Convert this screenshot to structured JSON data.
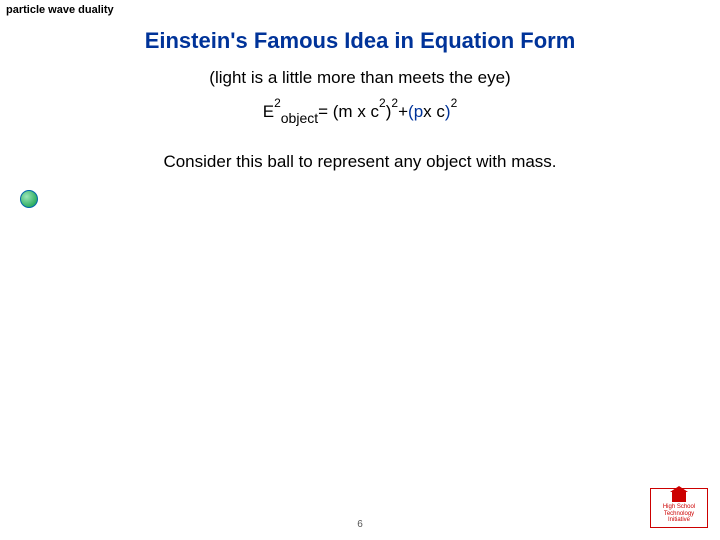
{
  "topic": "particle wave duality",
  "title": "Einstein's Famous Idea in Equation Form",
  "subtitle": "(light is a little more than meets the eye)",
  "equation": {
    "E": "E",
    "obj": "object",
    "eq": "= (m x c",
    "two_a": "2",
    "two_b": "2",
    "rparen": ")",
    "two_c": "2",
    "plus": " +   ",
    "p": "(p",
    "xc": " x c",
    "rparen2": ")",
    "two_d": "2"
  },
  "sentence": "Consider this ball to represent any object with mass.",
  "pagenum": "6",
  "badge_line1": "High School",
  "badge_line2": "Technology",
  "badge_line3": "Initiative",
  "colors": {
    "title": "#003399",
    "blue": "#003399",
    "text": "#000000",
    "ball_fill_light": "#9be6b8",
    "ball_fill_dark": "#2fae63",
    "ball_border": "#0066aa",
    "badge_border": "#cc0000"
  }
}
